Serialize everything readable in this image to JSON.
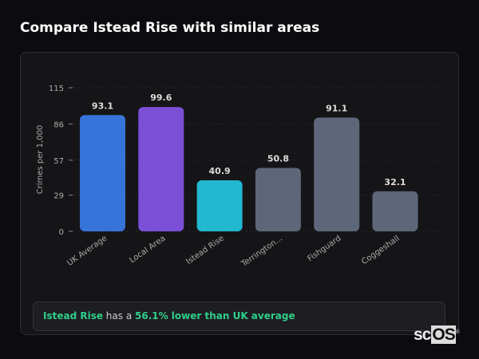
{
  "title": "Compare Istead Rise with similar areas",
  "chart_data": {
    "type": "bar",
    "title": "",
    "ylabel": "Crimes per 1,000",
    "xlabel": "",
    "ylim": [
      0,
      115
    ],
    "yticks": [
      0,
      29,
      57,
      86,
      115
    ],
    "grid": true,
    "categories": [
      "UK Average",
      "Local Area",
      "Istead Rise",
      "Terrington...",
      "Fishguard",
      "Coggeshall"
    ],
    "values": [
      93.1,
      99.6,
      40.9,
      50.8,
      91.1,
      32.1
    ],
    "value_labels": [
      "93.1",
      "99.6",
      "40.9",
      "50.8",
      "91.1",
      "32.1"
    ],
    "colors": [
      "#3674d9",
      "#7b4fd6",
      "#21b8d0",
      "#5d6779",
      "#5d6779",
      "#5d6779"
    ]
  },
  "summary": {
    "area": "Istead Rise",
    "middle": " has a ",
    "comparison": "56.1% lower than UK average"
  },
  "logo": {
    "text_a": "sc",
    "text_b": "OS",
    "mark": "®"
  }
}
